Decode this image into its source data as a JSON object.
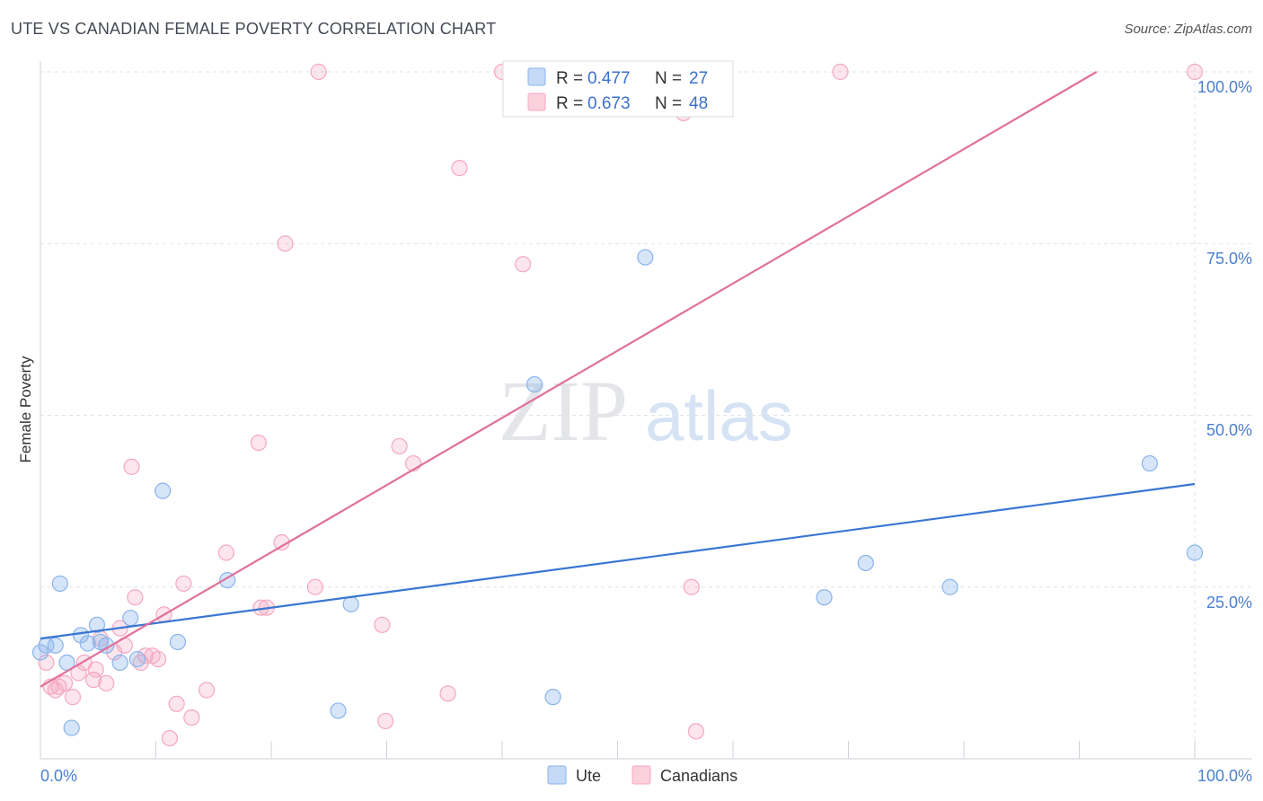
{
  "title": "UTE VS CANADIAN FEMALE POVERTY CORRELATION CHART",
  "source": "Source: ZipAtlas.com",
  "watermark": {
    "zip": "ZIP",
    "atlas": "atlas"
  },
  "colors": {
    "ute": "#8ab4ec",
    "ute_line": "#3a76d2",
    "canadians": "#f4a8c0",
    "canadians_line": "#e0709a"
  },
  "legend": {
    "ute": {
      "r_label": "R = ",
      "r": "0.477",
      "n_label": "N = ",
      "n": "27"
    },
    "canadians": {
      "r_label": "R = ",
      "r": "0.673",
      "n_label": "N = ",
      "n": "48"
    }
  },
  "chart_data": {
    "type": "scatter",
    "ylabel": "Female Poverty",
    "xlim": [
      0,
      100
    ],
    "ylim": [
      0,
      100
    ],
    "x_ticks": [
      "0.0%",
      "100.0%"
    ],
    "y_ticks": [
      "25.0%",
      "50.0%",
      "75.0%",
      "100.0%"
    ],
    "grid": true,
    "legend_position": "top-center",
    "series": [
      {
        "name": "Ute",
        "trend": [
          [
            0,
            17.5
          ],
          [
            100,
            40
          ]
        ],
        "points": [
          [
            0,
            15.5
          ],
          [
            0.5,
            16.5
          ],
          [
            1.3,
            16.5
          ],
          [
            1.7,
            25.5
          ],
          [
            2.3,
            14
          ],
          [
            2.7,
            4.5
          ],
          [
            3.5,
            18
          ],
          [
            4.1,
            16.8
          ],
          [
            4.9,
            19.5
          ],
          [
            5.2,
            17
          ],
          [
            5.7,
            16.5
          ],
          [
            6.9,
            14
          ],
          [
            7.8,
            20.5
          ],
          [
            8.4,
            14.5
          ],
          [
            10.6,
            39
          ],
          [
            11.9,
            17
          ],
          [
            16.2,
            26
          ],
          [
            25.8,
            7
          ],
          [
            26.9,
            22.5
          ],
          [
            42.8,
            54.5
          ],
          [
            44.4,
            9
          ],
          [
            52.4,
            73
          ],
          [
            67.9,
            23.5
          ],
          [
            71.5,
            28.5
          ],
          [
            78.8,
            25
          ],
          [
            96.1,
            43
          ],
          [
            100,
            30
          ]
        ]
      },
      {
        "name": "Canadians",
        "trend": [
          [
            0,
            10.5
          ],
          [
            91.5,
            100
          ]
        ],
        "points": [
          [
            0.5,
            14
          ],
          [
            0.9,
            10.5
          ],
          [
            1.3,
            10
          ],
          [
            1.6,
            10.5
          ],
          [
            2.1,
            11
          ],
          [
            2.8,
            9
          ],
          [
            3.3,
            12.5
          ],
          [
            3.8,
            14
          ],
          [
            4.6,
            11.5
          ],
          [
            4.8,
            13
          ],
          [
            5.2,
            17.5
          ],
          [
            5.7,
            11
          ],
          [
            6.4,
            15.5
          ],
          [
            6.9,
            19
          ],
          [
            7.3,
            16.5
          ],
          [
            7.9,
            42.5
          ],
          [
            8.2,
            23.5
          ],
          [
            8.7,
            14
          ],
          [
            9.1,
            15
          ],
          [
            9.7,
            15
          ],
          [
            10.2,
            14.5
          ],
          [
            10.7,
            21
          ],
          [
            11.2,
            3
          ],
          [
            11.8,
            8
          ],
          [
            12.4,
            25.5
          ],
          [
            13.1,
            6
          ],
          [
            14.4,
            10
          ],
          [
            16.1,
            30
          ],
          [
            18.9,
            46
          ],
          [
            19.1,
            22
          ],
          [
            19.6,
            22
          ],
          [
            20.9,
            31.5
          ],
          [
            21.2,
            75
          ],
          [
            23.8,
            25
          ],
          [
            24.1,
            100
          ],
          [
            29.6,
            19.5
          ],
          [
            29.9,
            5.5
          ],
          [
            31.1,
            45.5
          ],
          [
            32.3,
            43
          ],
          [
            35.3,
            9.5
          ],
          [
            36.3,
            86
          ],
          [
            40,
            100
          ],
          [
            41.8,
            72
          ],
          [
            55.7,
            94
          ],
          [
            56.4,
            25
          ],
          [
            56.8,
            4
          ],
          [
            69.3,
            100
          ],
          [
            100,
            100
          ]
        ]
      }
    ]
  },
  "bottom_legend": [
    {
      "label": "Ute"
    },
    {
      "label": "Canadians"
    }
  ]
}
